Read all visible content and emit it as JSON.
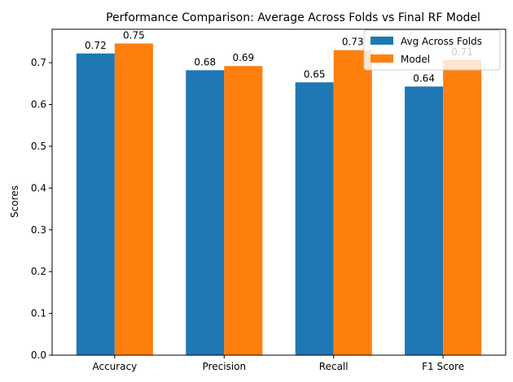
{
  "chart_data": {
    "type": "bar",
    "title": "Performance Comparison: Average Across Folds vs Final RF Model",
    "xlabel": "",
    "ylabel": "Scores",
    "categories": [
      "Accuracy",
      "Precision",
      "Recall",
      "F1 Score"
    ],
    "series": [
      {
        "name": "Avg Across Folds",
        "values": [
          0.722,
          0.682,
          0.653,
          0.643
        ],
        "labels": [
          "0.72",
          "0.68",
          "0.65",
          "0.64"
        ],
        "color": "#1f77b4"
      },
      {
        "name": "Model",
        "values": [
          0.746,
          0.692,
          0.73,
          0.706
        ],
        "labels": [
          "0.75",
          "0.69",
          "0.73",
          "0.71"
        ],
        "color": "#ff7f0e"
      }
    ],
    "ylim": [
      0,
      0.78
    ],
    "yticks": [
      "0.0",
      "0.1",
      "0.2",
      "0.3",
      "0.4",
      "0.5",
      "0.6",
      "0.7"
    ],
    "grid": false,
    "legend_position": "top-right"
  }
}
